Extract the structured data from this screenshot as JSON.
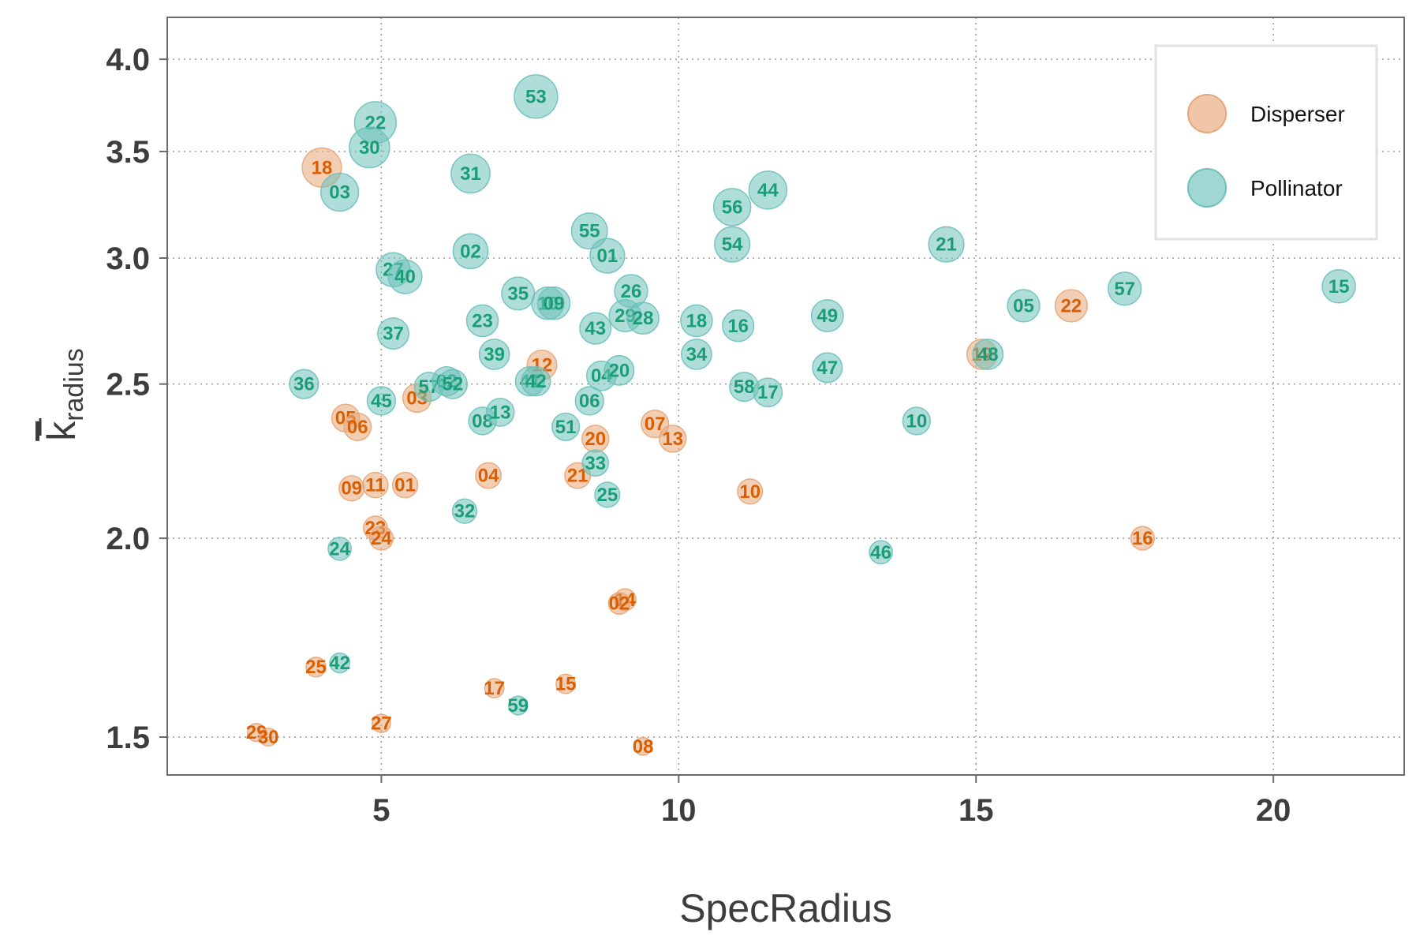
{
  "chart_data": {
    "type": "scatter",
    "xlabel": "SpecRadius",
    "ylabel_main": "k",
    "ylabel_sub": "radius",
    "y_scale": "log",
    "xlim": [
      1.4,
      22.2
    ],
    "ylim": [
      1.42,
      4.25
    ],
    "x_ticks": [
      5,
      10,
      15,
      20
    ],
    "y_ticks": [
      1.5,
      2.0,
      2.5,
      3.0,
      3.5,
      4.0
    ],
    "x_tick_labels": [
      "5",
      "10",
      "15",
      "20"
    ],
    "y_tick_labels": [
      "1.5",
      "2.0",
      "2.5",
      "3.0",
      "3.5",
      "4.0"
    ],
    "grid": true,
    "legend_position": "top-right",
    "series": [
      {
        "name": "Disperser",
        "color": "#D95F02",
        "fill": "#E8A679",
        "points": [
          {
            "label": "18",
            "x": 4.0,
            "y": 3.42
          },
          {
            "label": "05",
            "x": 4.4,
            "y": 2.38
          },
          {
            "label": "06",
            "x": 4.6,
            "y": 2.35
          },
          {
            "label": "09",
            "x": 4.5,
            "y": 2.15
          },
          {
            "label": "11",
            "x": 4.9,
            "y": 2.16
          },
          {
            "label": "01",
            "x": 5.4,
            "y": 2.16
          },
          {
            "label": "03",
            "x": 5.6,
            "y": 2.45
          },
          {
            "label": "23",
            "x": 4.9,
            "y": 2.03
          },
          {
            "label": "24",
            "x": 5.0,
            "y": 2.0
          },
          {
            "label": "25",
            "x": 3.9,
            "y": 1.66
          },
          {
            "label": "29",
            "x": 2.9,
            "y": 1.51
          },
          {
            "label": "30",
            "x": 3.1,
            "y": 1.5
          },
          {
            "label": "27",
            "x": 5.0,
            "y": 1.53
          },
          {
            "label": "04",
            "x": 6.8,
            "y": 2.19
          },
          {
            "label": "17",
            "x": 6.9,
            "y": 1.61
          },
          {
            "label": "15",
            "x": 8.1,
            "y": 1.62
          },
          {
            "label": "12",
            "x": 7.7,
            "y": 2.57
          },
          {
            "label": "20",
            "x": 8.6,
            "y": 2.31
          },
          {
            "label": "21",
            "x": 8.3,
            "y": 2.19
          },
          {
            "label": "14",
            "x": 9.1,
            "y": 1.83
          },
          {
            "label": "02",
            "x": 9.0,
            "y": 1.82
          },
          {
            "label": "08",
            "x": 9.4,
            "y": 1.48
          },
          {
            "label": "07",
            "x": 9.6,
            "y": 2.36
          },
          {
            "label": "13",
            "x": 9.9,
            "y": 2.31
          },
          {
            "label": "10",
            "x": 11.2,
            "y": 2.14
          },
          {
            "label": "19",
            "x": 15.1,
            "y": 2.61
          },
          {
            "label": "22",
            "x": 16.6,
            "y": 2.8
          },
          {
            "label": "16",
            "x": 17.8,
            "y": 2.0
          }
        ]
      },
      {
        "name": "Pollinator",
        "color": "#1B9E77",
        "fill": "#6EC1BA",
        "points": [
          {
            "label": "22",
            "x": 4.9,
            "y": 3.65
          },
          {
            "label": "30",
            "x": 4.8,
            "y": 3.52
          },
          {
            "label": "03",
            "x": 4.3,
            "y": 3.3
          },
          {
            "label": "27",
            "x": 5.2,
            "y": 2.95
          },
          {
            "label": "40",
            "x": 5.4,
            "y": 2.92
          },
          {
            "label": "37",
            "x": 5.2,
            "y": 2.69
          },
          {
            "label": "36",
            "x": 3.7,
            "y": 2.5
          },
          {
            "label": "45",
            "x": 5.0,
            "y": 2.44
          },
          {
            "label": "24",
            "x": 4.3,
            "y": 1.97
          },
          {
            "label": "42",
            "x": 4.3,
            "y": 1.67
          },
          {
            "label": "57",
            "x": 5.8,
            "y": 2.49
          },
          {
            "label": "62",
            "x": 6.1,
            "y": 2.51
          },
          {
            "label": "52",
            "x": 6.2,
            "y": 2.5
          },
          {
            "label": "31",
            "x": 6.5,
            "y": 3.39
          },
          {
            "label": "02",
            "x": 6.5,
            "y": 3.03
          },
          {
            "label": "23",
            "x": 6.7,
            "y": 2.74
          },
          {
            "label": "39",
            "x": 6.9,
            "y": 2.61
          },
          {
            "label": "08",
            "x": 6.7,
            "y": 2.37
          },
          {
            "label": "13",
            "x": 7.0,
            "y": 2.4
          },
          {
            "label": "32",
            "x": 6.4,
            "y": 2.08
          },
          {
            "label": "59",
            "x": 7.3,
            "y": 1.57
          },
          {
            "label": "53",
            "x": 7.6,
            "y": 3.79
          },
          {
            "label": "35",
            "x": 7.3,
            "y": 2.85
          },
          {
            "label": "41",
            "x": 7.5,
            "y": 2.51
          },
          {
            "label": "42",
            "x": 7.6,
            "y": 2.51
          },
          {
            "label": "51",
            "x": 8.1,
            "y": 2.35
          },
          {
            "label": "10",
            "x": 7.8,
            "y": 2.81
          },
          {
            "label": "09",
            "x": 7.9,
            "y": 2.81
          },
          {
            "label": "55",
            "x": 8.5,
            "y": 3.12
          },
          {
            "label": "01",
            "x": 8.8,
            "y": 3.01
          },
          {
            "label": "43",
            "x": 8.6,
            "y": 2.71
          },
          {
            "label": "04",
            "x": 8.7,
            "y": 2.53
          },
          {
            "label": "06",
            "x": 8.5,
            "y": 2.44
          },
          {
            "label": "33",
            "x": 8.6,
            "y": 2.23
          },
          {
            "label": "25",
            "x": 8.8,
            "y": 2.13
          },
          {
            "label": "26",
            "x": 9.2,
            "y": 2.86
          },
          {
            "label": "29",
            "x": 9.1,
            "y": 2.76
          },
          {
            "label": "28",
            "x": 9.4,
            "y": 2.75
          },
          {
            "label": "20",
            "x": 9.0,
            "y": 2.55
          },
          {
            "label": "18",
            "x": 10.3,
            "y": 2.74
          },
          {
            "label": "34",
            "x": 10.3,
            "y": 2.61
          },
          {
            "label": "56",
            "x": 10.9,
            "y": 3.23
          },
          {
            "label": "54",
            "x": 10.9,
            "y": 3.06
          },
          {
            "label": "44",
            "x": 11.5,
            "y": 3.31
          },
          {
            "label": "16",
            "x": 11.0,
            "y": 2.72
          },
          {
            "label": "58",
            "x": 11.1,
            "y": 2.49
          },
          {
            "label": "17",
            "x": 11.5,
            "y": 2.47
          },
          {
            "label": "49",
            "x": 12.5,
            "y": 2.76
          },
          {
            "label": "47",
            "x": 12.5,
            "y": 2.56
          },
          {
            "label": "46",
            "x": 13.4,
            "y": 1.96
          },
          {
            "label": "10",
            "x": 14.0,
            "y": 2.37
          },
          {
            "label": "21",
            "x": 14.5,
            "y": 3.06
          },
          {
            "label": "48",
            "x": 15.2,
            "y": 2.61
          },
          {
            "label": "05",
            "x": 15.8,
            "y": 2.8
          },
          {
            "label": "57",
            "x": 17.5,
            "y": 2.87
          },
          {
            "label": "15",
            "x": 21.1,
            "y": 2.88
          }
        ]
      }
    ]
  }
}
